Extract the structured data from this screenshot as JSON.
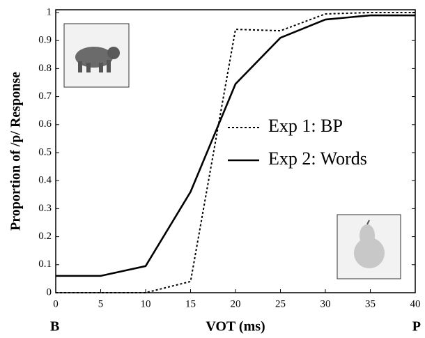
{
  "chart_data": {
    "type": "line",
    "xlabel": "VOT (ms)",
    "ylabel": "Proportion of /p/ Response",
    "x_end_labels": [
      "B",
      "P"
    ],
    "x": [
      0,
      5,
      10,
      15,
      20,
      25,
      30,
      35,
      40
    ],
    "series": [
      {
        "name": "Exp 1: BP",
        "color": "#000000",
        "dash": "dotted",
        "values": [
          0,
          0,
          0,
          0.04,
          0.94,
          0.935,
          0.995,
          1.0,
          1.0
        ]
      },
      {
        "name": "Exp 2: Words",
        "color": "#000000",
        "dash": "solid",
        "values": [
          0.06,
          0.06,
          0.095,
          0.36,
          0.745,
          0.91,
          0.975,
          0.99,
          0.99
        ]
      }
    ],
    "xlim": [
      0,
      40
    ],
    "xticks": [
      0,
      5,
      10,
      15,
      20,
      25,
      30,
      35,
      40
    ],
    "ylim": [
      0,
      1
    ],
    "yticks": [
      0,
      0.1,
      0.2,
      0.3,
      0.4,
      0.5,
      0.6,
      0.7,
      0.8,
      0.9,
      1
    ]
  }
}
